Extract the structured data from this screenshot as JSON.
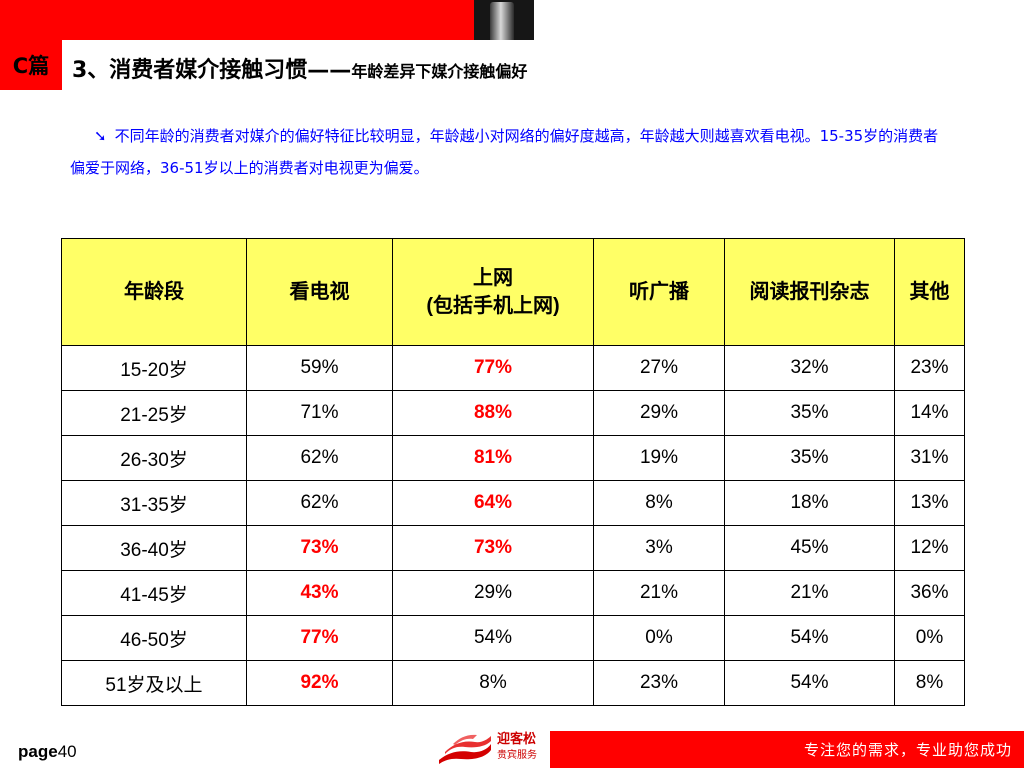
{
  "header": {
    "section_badge": "C篇",
    "title_main": "3、消费者媒介接触习惯——",
    "title_sub": "年龄差异下媒介接触偏好"
  },
  "intro": {
    "bullet_icon": "arrow-bullet-icon",
    "text": "不同年龄的消费者对媒介的偏好特征比较明显，年龄越小对网络的偏好度越高，年龄越大则越喜欢看电视。15-35岁的消费者偏爱于网络，36-51岁以上的消费者对电视更为偏爱。"
  },
  "table": {
    "header_bg": "#ffff66",
    "highlight_color": "#ff0000",
    "columns": [
      "年龄段",
      "看电视",
      "上网\n(包括手机上网)",
      "听广播",
      "阅读报刊杂志",
      "其他"
    ],
    "rows": [
      {
        "age": "15-20岁",
        "tv": "59%",
        "internet": "77%",
        "radio": "27%",
        "print": "32%",
        "other": "23%",
        "hl_tv": false,
        "hl_net": true
      },
      {
        "age": "21-25岁",
        "tv": "71%",
        "internet": "88%",
        "radio": "29%",
        "print": "35%",
        "other": "14%",
        "hl_tv": false,
        "hl_net": true
      },
      {
        "age": "26-30岁",
        "tv": "62%",
        "internet": "81%",
        "radio": "19%",
        "print": "35%",
        "other": "31%",
        "hl_tv": false,
        "hl_net": true
      },
      {
        "age": "31-35岁",
        "tv": "62%",
        "internet": "64%",
        "radio": "8%",
        "print": "18%",
        "other": "13%",
        "hl_tv": false,
        "hl_net": true
      },
      {
        "age": "36-40岁",
        "tv": "73%",
        "internet": "73%",
        "radio": "3%",
        "print": "45%",
        "other": "12%",
        "hl_tv": true,
        "hl_net": true
      },
      {
        "age": "41-45岁",
        "tv": "43%",
        "internet": "29%",
        "radio": "21%",
        "print": "21%",
        "other": "36%",
        "hl_tv": true,
        "hl_net": false
      },
      {
        "age": "46-50岁",
        "tv": "77%",
        "internet": "54%",
        "radio": "0%",
        "print": "54%",
        "other": "0%",
        "hl_tv": true,
        "hl_net": false
      },
      {
        "age": "51岁及以上",
        "tv": "92%",
        "internet": "8%",
        "radio": "23%",
        "print": "54%",
        "other": "8%",
        "hl_tv": true,
        "hl_net": false
      }
    ]
  },
  "footer": {
    "page_prefix": "page",
    "page_number": "40",
    "logo_name": "迎客松",
    "logo_sub": "贵宾服务",
    "slogan": "专注您的需求，专业助您成功",
    "brand_color": "#ff0000"
  }
}
